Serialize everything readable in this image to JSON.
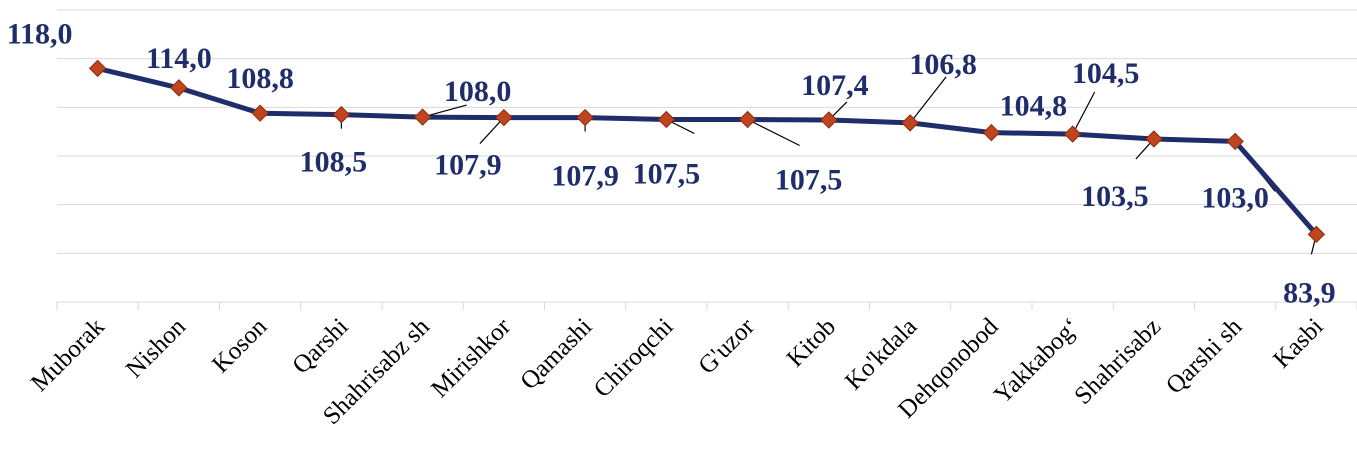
{
  "chart_data": {
    "type": "line",
    "categories": [
      "Muborak",
      "Nishon",
      "Koson",
      "Qarshi",
      "Shahrisabz sh",
      "Mirishkor",
      "Qamashi",
      "Chiroqchi",
      "G'uzor",
      "Kitob",
      "Ko'kdala",
      "Dehqonobod",
      "Yakkabog‘",
      "Shahrisabz",
      "Qarshi sh",
      "Kasbi"
    ],
    "series": [
      {
        "values": [
          118.0,
          114.0,
          108.8,
          108.5,
          108.0,
          107.9,
          107.9,
          107.5,
          107.5,
          107.4,
          106.8,
          104.8,
          104.5,
          103.5,
          103.0,
          83.9
        ],
        "labels": [
          "118,0",
          "114,0",
          "108,8",
          "108,5",
          "108,0",
          "107,9",
          "107,9",
          "107,5",
          "107,5",
          "107,4",
          "106,8",
          "104,8",
          "104,5",
          "103,5",
          "103,0",
          "83,9"
        ],
        "color": "#1f2d6b",
        "marker_color": "#c0451e"
      }
    ],
    "ylim": [
      70,
      130
    ],
    "grid": true,
    "legend": "none"
  }
}
